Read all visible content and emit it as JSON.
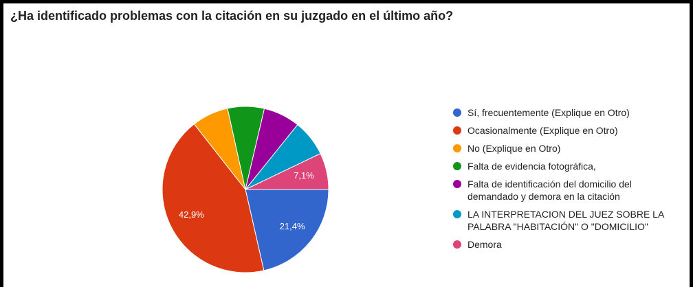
{
  "chart_data": {
    "type": "pie",
    "title": "¿Ha identificado problemas con la citación en su juzgado en el último año?",
    "categories": [
      "Sí, frecuentemente (Explique en Otro)",
      "Ocasionalmente (Explique en Otro)",
      "No (Explique en Otro)",
      "Falta de evidencia fotográfica,",
      "Falta de identificación del domicilio del demandado y demora en la citación",
      "LA INTERPRETACION DEL JUEZ SOBRE LA PALABRA \"HABITACIÓN\" O \"DOMICILIO\"",
      "Demora"
    ],
    "values": [
      21.4,
      42.9,
      7.1,
      7.1,
      7.1,
      7.1,
      7.1
    ],
    "value_labels": [
      "21,4%",
      "42,9%",
      null,
      null,
      null,
      null,
      "7,1%"
    ],
    "colors": [
      "#3366cc",
      "#dc3912",
      "#ff9900",
      "#109618",
      "#990099",
      "#0099c6",
      "#dd4477"
    ],
    "legend": "right"
  }
}
